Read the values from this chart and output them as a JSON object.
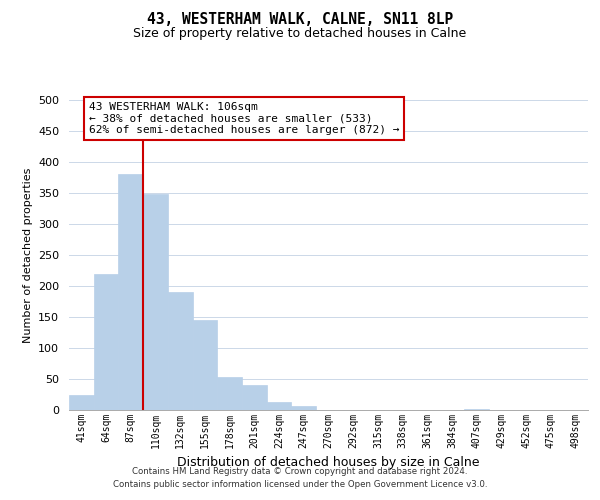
{
  "title": "43, WESTERHAM WALK, CALNE, SN11 8LP",
  "subtitle": "Size of property relative to detached houses in Calne",
  "xlabel": "Distribution of detached houses by size in Calne",
  "ylabel": "Number of detached properties",
  "bar_labels": [
    "41sqm",
    "64sqm",
    "87sqm",
    "110sqm",
    "132sqm",
    "155sqm",
    "178sqm",
    "201sqm",
    "224sqm",
    "247sqm",
    "270sqm",
    "292sqm",
    "315sqm",
    "338sqm",
    "361sqm",
    "384sqm",
    "407sqm",
    "429sqm",
    "452sqm",
    "475sqm",
    "498sqm"
  ],
  "bar_heights": [
    25,
    220,
    380,
    348,
    190,
    145,
    53,
    40,
    13,
    7,
    0,
    0,
    0,
    0,
    0,
    0,
    2,
    0,
    0,
    0,
    0
  ],
  "bar_color": "#b8d0e8",
  "bar_edge_color": "#b8d0e8",
  "vline_color": "#cc0000",
  "ylim": [
    0,
    500
  ],
  "yticks": [
    0,
    50,
    100,
    150,
    200,
    250,
    300,
    350,
    400,
    450,
    500
  ],
  "annotation_title": "43 WESTERHAM WALK: 106sqm",
  "annotation_line1": "← 38% of detached houses are smaller (533)",
  "annotation_line2": "62% of semi-detached houses are larger (872) →",
  "annotation_box_color": "#ffffff",
  "annotation_box_edge": "#cc0000",
  "footer1": "Contains HM Land Registry data © Crown copyright and database right 2024.",
  "footer2": "Contains public sector information licensed under the Open Government Licence v3.0.",
  "background_color": "#ffffff",
  "grid_color": "#ccd8e8"
}
